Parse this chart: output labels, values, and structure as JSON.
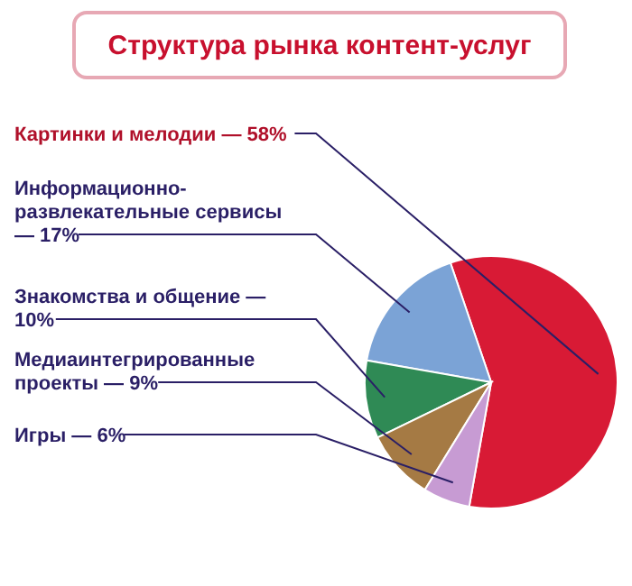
{
  "chart_data": {
    "type": "pie",
    "title": "Структура рынка контент-услуг",
    "categories": [
      "Картинки и мелодии",
      "Информационно-развлекательные сервисы",
      "Знакомства и общение",
      "Медиаинтегрированные проекты",
      "Игры"
    ],
    "values": [
      58,
      17,
      10,
      9,
      6
    ],
    "value_labels": [
      "— 58%",
      "— 17%",
      "— 10%",
      "— 9%",
      "— 6%"
    ],
    "colors": [
      "#d81a35",
      "#7ba3d6",
      "#2f8a55",
      "#a57a44",
      "#c79bd3"
    ]
  }
}
